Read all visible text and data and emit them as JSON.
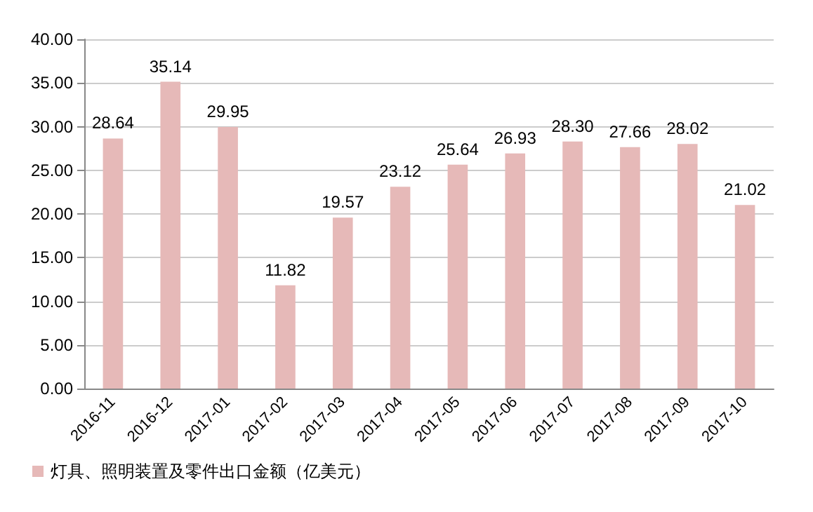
{
  "chart_data": {
    "type": "bar",
    "categories": [
      "2016-11",
      "2016-12",
      "2017-01",
      "2017-02",
      "2017-03",
      "2017-04",
      "2017-05",
      "2017-06",
      "2017-07",
      "2017-08",
      "2017-09",
      "2017-10"
    ],
    "series": [
      {
        "name": "灯具、照明装置及零件出口金额（亿美元）",
        "color": "#e6b9b8",
        "values": [
          28.64,
          35.14,
          29.95,
          11.82,
          19.57,
          23.12,
          25.64,
          26.93,
          28.3,
          27.66,
          28.02,
          21.02
        ],
        "value_labels": [
          "28.64",
          "35.14",
          "29.95",
          "11.82",
          "19.57",
          "23.12",
          "25.64",
          "26.93",
          "28.30",
          "27.66",
          "28.02",
          "21.02"
        ]
      }
    ],
    "ylim": [
      0,
      40
    ],
    "yticks": [
      {
        "value": 0,
        "label": "0.00"
      },
      {
        "value": 5,
        "label": "5.00"
      },
      {
        "value": 10,
        "label": "10.00"
      },
      {
        "value": 15,
        "label": "15.00"
      },
      {
        "value": 20,
        "label": "20.00"
      },
      {
        "value": 25,
        "label": "25.00"
      },
      {
        "value": 30,
        "label": "30.00"
      },
      {
        "value": 35,
        "label": "35.00"
      },
      {
        "value": 40,
        "label": "40.00"
      }
    ],
    "grid": "y",
    "legend": "bottom left"
  }
}
